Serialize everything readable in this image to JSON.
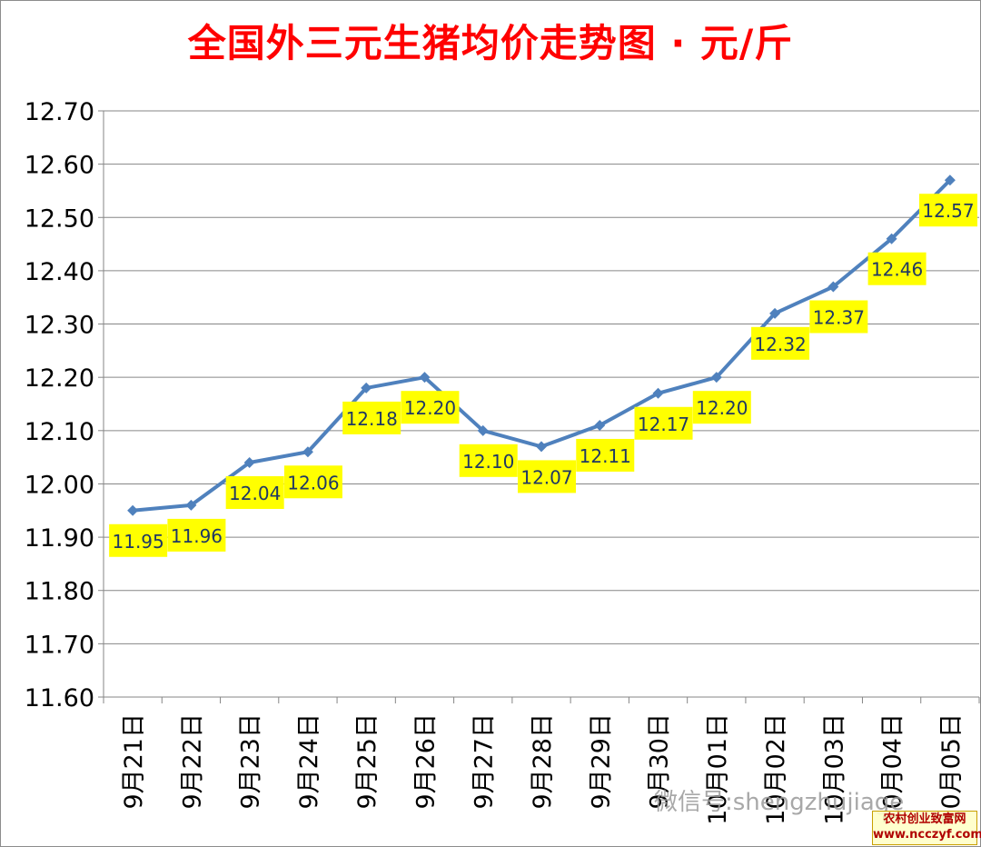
{
  "chart_data": {
    "type": "line",
    "title": "全国外三元生猪均价走势图 · 元/斤",
    "categories": [
      "9月21日",
      "9月22日",
      "9月23日",
      "9月24日",
      "9月25日",
      "9月26日",
      "9月27日",
      "9月28日",
      "9月29日",
      "9月30日",
      "10月01日",
      "10月02日",
      "10月03日",
      "10月04日",
      "10月05日"
    ],
    "series": [
      {
        "values": [
          11.95,
          11.96,
          12.04,
          12.06,
          12.18,
          12.2,
          12.1,
          12.07,
          12.11,
          12.17,
          12.2,
          12.32,
          12.37,
          12.46,
          12.57
        ],
        "data_labels": [
          "11.95",
          "11.96",
          "12.04",
          "12.06",
          "12.18",
          "12.20",
          "12.10",
          "12.07",
          "12.11",
          "12.17",
          "12.20",
          "12.32",
          "12.37",
          "12.46",
          "12.57"
        ]
      }
    ],
    "ylim": [
      11.6,
      12.7
    ],
    "yticks": [
      "11.60",
      "11.70",
      "11.80",
      "11.90",
      "12.00",
      "12.10",
      "12.20",
      "12.30",
      "12.40",
      "12.50",
      "12.60",
      "12.70"
    ],
    "grid": true,
    "legend": "none",
    "colors": {
      "line": "#4f81bd",
      "label_bg": "#ffff00",
      "label_text": "#1f3864",
      "title": "#ff0000",
      "grid": "#868686"
    }
  },
  "watermark": {
    "wechat": "微信号:shengzhujiage",
    "badge_line1": "农村创业致富网",
    "badge_line2": "www.ncczyf.com"
  }
}
